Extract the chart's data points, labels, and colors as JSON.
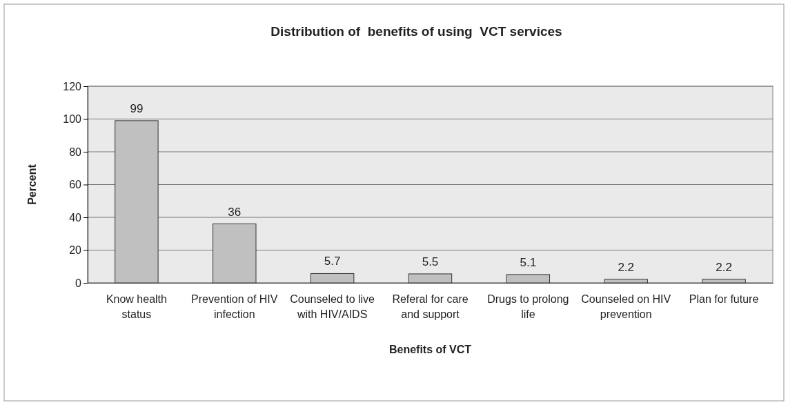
{
  "chart_data": {
    "type": "bar",
    "title": "Distribution of  benefits of using  VCT services",
    "xlabel": "Benefits of VCT",
    "ylabel": "Percent",
    "categories": [
      "Know health status",
      "Prevention of HIV infection",
      "Counseled to live with HIV/AIDS",
      "Referal for care and support",
      "Drugs to prolong life",
      "Counseled on HIV prevention",
      "Plan for future"
    ],
    "values": [
      99,
      36,
      5.7,
      5.5,
      5.1,
      2.2,
      2.2
    ],
    "color": "#c0c0c0",
    "data_labels": true,
    "ylim": [
      0,
      120
    ],
    "yticks": [
      0,
      20,
      40,
      60,
      80,
      100,
      120
    ],
    "grid": "y"
  }
}
